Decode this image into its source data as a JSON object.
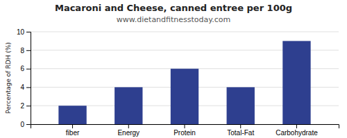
{
  "chart_data": {
    "type": "bar",
    "title": "Macaroni and Cheese, canned entree per 100g",
    "subtitle": "www.dietandfitnesstoday.com",
    "categories": [
      "fiber",
      "Energy",
      "Protein",
      "Total-Fat",
      "Carbohydrate"
    ],
    "values": [
      2.0,
      4.0,
      6.0,
      4.0,
      9.0
    ],
    "color": "#2e3f8f",
    "ylabel": "Percentage of RDH (%)",
    "ylim": [
      0,
      10
    ],
    "yticks": [
      0,
      2,
      4,
      6,
      8,
      10
    ],
    "grid": true
  }
}
